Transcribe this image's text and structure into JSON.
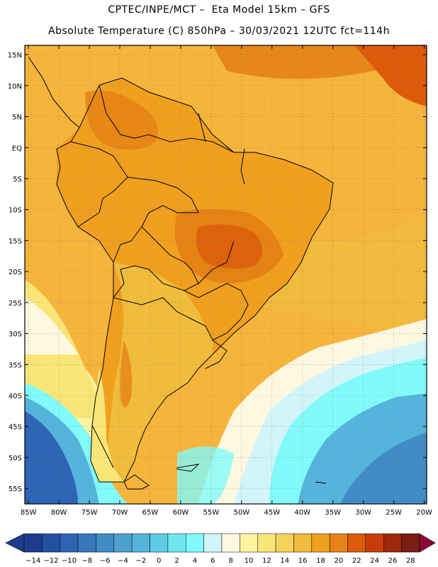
{
  "header": {
    "line1": "CPTEC/INPE/MCT –  Eta Model 15km – GFS",
    "line2": "Absolute Temperature (C) 850hPa – 30/03/2021 12UTC fct=114h"
  },
  "axes": {
    "lat_labels": [
      "15N",
      "10N",
      "5N",
      "EQ",
      "5S",
      "10S",
      "15S",
      "20S",
      "25S",
      "30S",
      "35S",
      "40S",
      "45S",
      "50S",
      "55S"
    ],
    "lat_values": [
      15,
      10,
      5,
      0,
      -5,
      -10,
      -15,
      -20,
      -25,
      -30,
      -35,
      -40,
      -45,
      -50,
      -55
    ],
    "lon_labels": [
      "85W",
      "80W",
      "75W",
      "70W",
      "65W",
      "60W",
      "55W",
      "50W",
      "45W",
      "40W",
      "35W",
      "30W",
      "25W",
      "20W"
    ],
    "lon_values": [
      -85,
      -80,
      -75,
      -70,
      -65,
      -60,
      -55,
      -50,
      -45,
      -40,
      -35,
      -30,
      -25,
      -20
    ],
    "lon_range": [
      -85.6,
      -19.6
    ],
    "lat_range": [
      -57.5,
      16.5
    ],
    "grid": true
  },
  "colorbar": {
    "labels": [
      "-14",
      "-12",
      "-10",
      "-8",
      "-6",
      "-4",
      "-2",
      "0",
      "2",
      "4",
      "6",
      "8",
      "10",
      "12",
      "14",
      "16",
      "18",
      "20",
      "22",
      "24",
      "26",
      "28"
    ],
    "colors": [
      "#1e3c8c",
      "#2350a0",
      "#2d64b4",
      "#3778bc",
      "#418cc6",
      "#4ba0d0",
      "#55b4dc",
      "#5fcce6",
      "#6ee6f0",
      "#82fafa",
      "#d2f5fa",
      "#fff8e1",
      "#fff5a0",
      "#fae678",
      "#f5d25a",
      "#f0bc3c",
      "#f0a01e",
      "#e68214",
      "#dc5a0a",
      "#c83c0a",
      "#a0280a",
      "#781e14"
    ]
  },
  "map_data": {
    "field": "Absolute Temperature (C) 850hPa",
    "colors": {
      "ocean_warm": "#f5b43c",
      "land_warm": "#f0a01e",
      "hot": "#e68214",
      "hottest": "#dc5a0a",
      "mild": "#fae678",
      "cool": "#fff8e1",
      "cold1": "#d2f5fa",
      "cold2": "#82fafa",
      "cold3": "#55b4dc",
      "cold4": "#2d64b4",
      "border": "#000000"
    }
  }
}
